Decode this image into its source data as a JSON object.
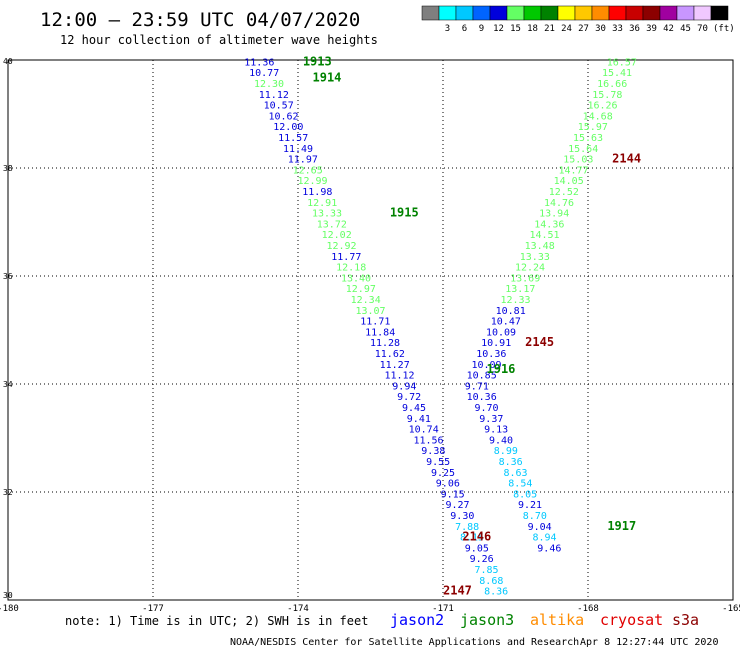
{
  "header": {
    "title": "12:00 – 23:59 UTC 04/07/2020",
    "subtitle": "12 hour collection of altimeter wave heights"
  },
  "legend": {
    "unit": "(ft)",
    "bins": [
      {
        "color": "#7f7f7f",
        "label": ""
      },
      {
        "color": "#00ffff",
        "label": "3"
      },
      {
        "color": "#00c8ff",
        "label": "6"
      },
      {
        "color": "#0064ff",
        "label": "9"
      },
      {
        "color": "#0000dc",
        "label": "12"
      },
      {
        "color": "#64ff64",
        "label": "15"
      },
      {
        "color": "#00c800",
        "label": "18"
      },
      {
        "color": "#008200",
        "label": "21"
      },
      {
        "color": "#ffff00",
        "label": "24"
      },
      {
        "color": "#ffc800",
        "label": "27"
      },
      {
        "color": "#ff8c00",
        "label": "30"
      },
      {
        "color": "#ff0000",
        "label": "33"
      },
      {
        "color": "#c80000",
        "label": "36"
      },
      {
        "color": "#8c0000",
        "label": "39"
      },
      {
        "color": "#a000a0",
        "label": "42"
      },
      {
        "color": "#c896ff",
        "label": "45"
      },
      {
        "color": "#f0c8ff",
        "label": "70"
      },
      {
        "color": "#000000",
        "label": ""
      }
    ]
  },
  "footer": {
    "note": "note: 1) Time is in UTC; 2) SWH is in feet",
    "credit": "NOAA/NESDIS Center for Satellite Applications and Research",
    "timestamp": "Apr  8 12:27:44 UTC 2020",
    "satellites": [
      {
        "name": "jason2",
        "color": "#0000ff"
      },
      {
        "name": "jason3",
        "color": "#008200"
      },
      {
        "name": "altika",
        "color": "#ff8c00"
      },
      {
        "name": "cryosat",
        "color": "#e00000"
      },
      {
        "name": "s3a",
        "color": "#8c0000"
      }
    ]
  },
  "chart_data": {
    "type": "scatter",
    "xlim": [
      -180,
      -165
    ],
    "ylim": [
      30,
      40
    ],
    "xticks": [
      "-180",
      "-177",
      "-174",
      "-171",
      "-168",
      "-165"
    ],
    "yticks": [
      "30",
      "32",
      "34",
      "36",
      "38",
      "40"
    ],
    "grid": true,
    "time_labels": [
      {
        "text": "1913",
        "lon": -173.9,
        "lat": 39.9,
        "color": "#008200"
      },
      {
        "text": "1914",
        "lon": -173.7,
        "lat": 39.6,
        "color": "#008200"
      },
      {
        "text": "1915",
        "lon": -172.1,
        "lat": 37.1,
        "color": "#008200"
      },
      {
        "text": "1916",
        "lon": -170.1,
        "lat": 34.2,
        "color": "#008200"
      },
      {
        "text": "1917",
        "lon": -167.6,
        "lat": 31.3,
        "color": "#008200"
      },
      {
        "text": "2144",
        "lon": -167.5,
        "lat": 38.1,
        "color": "#8c0000"
      },
      {
        "text": "2145",
        "lon": -169.3,
        "lat": 34.7,
        "color": "#8c0000"
      },
      {
        "text": "2146",
        "lon": -170.6,
        "lat": 31.1,
        "color": "#8c0000"
      },
      {
        "text": "2147",
        "lon": -171.0,
        "lat": 30.1,
        "color": "#8c0000"
      }
    ],
    "series": [
      {
        "name": "jason3",
        "points": [
          {
            "lon": -174.8,
            "lat": 39.9,
            "value": "11.36",
            "color": "#0000dc"
          },
          {
            "lon": -174.7,
            "lat": 39.7,
            "value": "10.77",
            "color": "#0000dc"
          },
          {
            "lon": -174.6,
            "lat": 39.5,
            "value": "12.30",
            "color": "#64ff64"
          },
          {
            "lon": -174.5,
            "lat": 39.3,
            "value": "11.12",
            "color": "#0000dc"
          },
          {
            "lon": -174.4,
            "lat": 39.1,
            "value": "10.57",
            "color": "#0000dc"
          },
          {
            "lon": -174.3,
            "lat": 38.9,
            "value": "10.62",
            "color": "#0000dc"
          },
          {
            "lon": -174.2,
            "lat": 38.7,
            "value": "12.00",
            "color": "#0000dc"
          },
          {
            "lon": -174.1,
            "lat": 38.5,
            "value": "11.57",
            "color": "#0000dc"
          },
          {
            "lon": -174.0,
            "lat": 38.3,
            "value": "11.49",
            "color": "#0000dc"
          },
          {
            "lon": -173.9,
            "lat": 38.1,
            "value": "11.97",
            "color": "#0000dc"
          },
          {
            "lon": -173.8,
            "lat": 37.9,
            "value": "12.65",
            "color": "#64ff64"
          },
          {
            "lon": -173.7,
            "lat": 37.7,
            "value": "12.99",
            "color": "#64ff64"
          },
          {
            "lon": -173.6,
            "lat": 37.5,
            "value": "11.98",
            "color": "#0000dc"
          },
          {
            "lon": -173.5,
            "lat": 37.3,
            "value": "12.91",
            "color": "#64ff64"
          },
          {
            "lon": -173.4,
            "lat": 37.1,
            "value": "13.33",
            "color": "#64ff64"
          },
          {
            "lon": -173.3,
            "lat": 36.9,
            "value": "13.72",
            "color": "#64ff64"
          },
          {
            "lon": -173.2,
            "lat": 36.7,
            "value": "12.02",
            "color": "#64ff64"
          },
          {
            "lon": -173.1,
            "lat": 36.5,
            "value": "12.92",
            "color": "#64ff64"
          },
          {
            "lon": -173.0,
            "lat": 36.3,
            "value": "11.77",
            "color": "#0000dc"
          },
          {
            "lon": -172.9,
            "lat": 36.1,
            "value": "12.18",
            "color": "#64ff64"
          },
          {
            "lon": -172.8,
            "lat": 35.9,
            "value": "13.40",
            "color": "#64ff64"
          },
          {
            "lon": -172.7,
            "lat": 35.7,
            "value": "12.97",
            "color": "#64ff64"
          },
          {
            "lon": -172.6,
            "lat": 35.5,
            "value": "12.34",
            "color": "#64ff64"
          },
          {
            "lon": -172.5,
            "lat": 35.3,
            "value": "13.07",
            "color": "#64ff64"
          },
          {
            "lon": -172.4,
            "lat": 35.1,
            "value": "11.71",
            "color": "#0000dc"
          },
          {
            "lon": -172.3,
            "lat": 34.9,
            "value": "11.84",
            "color": "#0000dc"
          },
          {
            "lon": -172.2,
            "lat": 34.7,
            "value": "11.28",
            "color": "#0000dc"
          },
          {
            "lon": -172.1,
            "lat": 34.5,
            "value": "11.62",
            "color": "#0000dc"
          },
          {
            "lon": -172.0,
            "lat": 34.3,
            "value": "11.27",
            "color": "#0000dc"
          },
          {
            "lon": -171.9,
            "lat": 34.1,
            "value": "11.12",
            "color": "#0000dc"
          },
          {
            "lon": -171.8,
            "lat": 33.9,
            "value": "9.94",
            "color": "#0000dc"
          },
          {
            "lon": -171.7,
            "lat": 33.7,
            "value": "9.72",
            "color": "#0000dc"
          },
          {
            "lon": -171.6,
            "lat": 33.5,
            "value": "9.45",
            "color": "#0000dc"
          },
          {
            "lon": -171.5,
            "lat": 33.3,
            "value": "9.41",
            "color": "#0000dc"
          },
          {
            "lon": -171.4,
            "lat": 33.1,
            "value": "10.74",
            "color": "#0000dc"
          },
          {
            "lon": -171.3,
            "lat": 32.9,
            "value": "11.56",
            "color": "#0000dc"
          },
          {
            "lon": -171.2,
            "lat": 32.7,
            "value": "9.38",
            "color": "#0000dc"
          },
          {
            "lon": -171.1,
            "lat": 32.5,
            "value": "9.55",
            "color": "#0000dc"
          },
          {
            "lon": -171.0,
            "lat": 32.3,
            "value": "9.25",
            "color": "#0000dc"
          },
          {
            "lon": -170.9,
            "lat": 32.1,
            "value": "9.06",
            "color": "#0000dc"
          },
          {
            "lon": -170.8,
            "lat": 31.9,
            "value": "9.15",
            "color": "#0000dc"
          },
          {
            "lon": -170.7,
            "lat": 31.7,
            "value": "9.27",
            "color": "#0000dc"
          },
          {
            "lon": -170.6,
            "lat": 31.5,
            "value": "9.30",
            "color": "#0000dc"
          },
          {
            "lon": -170.5,
            "lat": 31.3,
            "value": "7.88",
            "color": "#00c8ff"
          },
          {
            "lon": -170.4,
            "lat": 31.1,
            "value": "8.15",
            "color": "#00c8ff"
          },
          {
            "lon": -170.3,
            "lat": 30.9,
            "value": "9.05",
            "color": "#0000dc"
          },
          {
            "lon": -170.2,
            "lat": 30.7,
            "value": "9.26",
            "color": "#0000dc"
          },
          {
            "lon": -170.1,
            "lat": 30.5,
            "value": "7.85",
            "color": "#00c8ff"
          },
          {
            "lon": -170.0,
            "lat": 30.3,
            "value": "8.68",
            "color": "#00c8ff"
          },
          {
            "lon": -169.9,
            "lat": 30.1,
            "value": "8.36",
            "color": "#00c8ff"
          }
        ]
      },
      {
        "name": "s3a",
        "points": [
          {
            "lon": -167.3,
            "lat": 39.9,
            "value": "16.57",
            "color": "#64ff64"
          },
          {
            "lon": -167.4,
            "lat": 39.7,
            "value": "15.41",
            "color": "#64ff64"
          },
          {
            "lon": -167.5,
            "lat": 39.5,
            "value": "16.66",
            "color": "#64ff64"
          },
          {
            "lon": -167.6,
            "lat": 39.3,
            "value": "15.78",
            "color": "#64ff64"
          },
          {
            "lon": -167.7,
            "lat": 39.1,
            "value": "16.26",
            "color": "#64ff64"
          },
          {
            "lon": -167.8,
            "lat": 38.9,
            "value": "14.68",
            "color": "#64ff64"
          },
          {
            "lon": -167.9,
            "lat": 38.7,
            "value": "15.97",
            "color": "#64ff64"
          },
          {
            "lon": -168.0,
            "lat": 38.5,
            "value": "15.63",
            "color": "#64ff64"
          },
          {
            "lon": -168.1,
            "lat": 38.3,
            "value": "15.64",
            "color": "#64ff64"
          },
          {
            "lon": -168.2,
            "lat": 38.1,
            "value": "15.03",
            "color": "#64ff64"
          },
          {
            "lon": -168.3,
            "lat": 37.9,
            "value": "14.77",
            "color": "#64ff64"
          },
          {
            "lon": -168.4,
            "lat": 37.7,
            "value": "14.05",
            "color": "#64ff64"
          },
          {
            "lon": -168.5,
            "lat": 37.5,
            "value": "12.52",
            "color": "#64ff64"
          },
          {
            "lon": -168.6,
            "lat": 37.3,
            "value": "14.76",
            "color": "#64ff64"
          },
          {
            "lon": -168.7,
            "lat": 37.1,
            "value": "13.94",
            "color": "#64ff64"
          },
          {
            "lon": -168.8,
            "lat": 36.9,
            "value": "14.36",
            "color": "#64ff64"
          },
          {
            "lon": -168.9,
            "lat": 36.7,
            "value": "14.51",
            "color": "#64ff64"
          },
          {
            "lon": -169.0,
            "lat": 36.5,
            "value": "13.48",
            "color": "#64ff64"
          },
          {
            "lon": -169.1,
            "lat": 36.3,
            "value": "13.33",
            "color": "#64ff64"
          },
          {
            "lon": -169.2,
            "lat": 36.1,
            "value": "12.24",
            "color": "#64ff64"
          },
          {
            "lon": -169.3,
            "lat": 35.9,
            "value": "13.69",
            "color": "#64ff64"
          },
          {
            "lon": -169.4,
            "lat": 35.7,
            "value": "13.17",
            "color": "#64ff64"
          },
          {
            "lon": -169.5,
            "lat": 35.5,
            "value": "12.33",
            "color": "#64ff64"
          },
          {
            "lon": -169.6,
            "lat": 35.3,
            "value": "10.81",
            "color": "#0000dc"
          },
          {
            "lon": -169.7,
            "lat": 35.1,
            "value": "10.47",
            "color": "#0000dc"
          },
          {
            "lon": -169.8,
            "lat": 34.9,
            "value": "10.09",
            "color": "#0000dc"
          },
          {
            "lon": -169.9,
            "lat": 34.7,
            "value": "10.91",
            "color": "#0000dc"
          },
          {
            "lon": -170.0,
            "lat": 34.5,
            "value": "10.36",
            "color": "#0000dc"
          },
          {
            "lon": -170.1,
            "lat": 34.3,
            "value": "10.09",
            "color": "#0000dc"
          },
          {
            "lon": -170.2,
            "lat": 34.1,
            "value": "10.85",
            "color": "#0000dc"
          },
          {
            "lon": -170.3,
            "lat": 33.9,
            "value": "9.71",
            "color": "#0000dc"
          },
          {
            "lon": -170.2,
            "lat": 33.7,
            "value": "10.36",
            "color": "#0000dc"
          },
          {
            "lon": -170.1,
            "lat": 33.5,
            "value": "9.70",
            "color": "#0000dc"
          },
          {
            "lon": -170.0,
            "lat": 33.3,
            "value": "9.37",
            "color": "#0000dc"
          },
          {
            "lon": -169.9,
            "lat": 33.1,
            "value": "9.13",
            "color": "#0000dc"
          },
          {
            "lon": -169.8,
            "lat": 32.9,
            "value": "9.40",
            "color": "#0000dc"
          },
          {
            "lon": -169.7,
            "lat": 32.7,
            "value": "8.99",
            "color": "#00c8ff"
          },
          {
            "lon": -169.6,
            "lat": 32.5,
            "value": "8.36",
            "color": "#00c8ff"
          },
          {
            "lon": -169.5,
            "lat": 32.3,
            "value": "8.63",
            "color": "#00c8ff"
          },
          {
            "lon": -169.4,
            "lat": 32.1,
            "value": "8.54",
            "color": "#00c8ff"
          },
          {
            "lon": -169.3,
            "lat": 31.9,
            "value": "8.05",
            "color": "#00c8ff"
          },
          {
            "lon": -169.2,
            "lat": 31.7,
            "value": "9.21",
            "color": "#0000dc"
          },
          {
            "lon": -169.1,
            "lat": 31.5,
            "value": "8.70",
            "color": "#00c8ff"
          },
          {
            "lon": -169.0,
            "lat": 31.3,
            "value": "9.04",
            "color": "#0000dc"
          },
          {
            "lon": -168.9,
            "lat": 31.1,
            "value": "8.94",
            "color": "#00c8ff"
          },
          {
            "lon": -168.8,
            "lat": 30.9,
            "value": "9.46",
            "color": "#0000dc"
          }
        ]
      }
    ]
  }
}
